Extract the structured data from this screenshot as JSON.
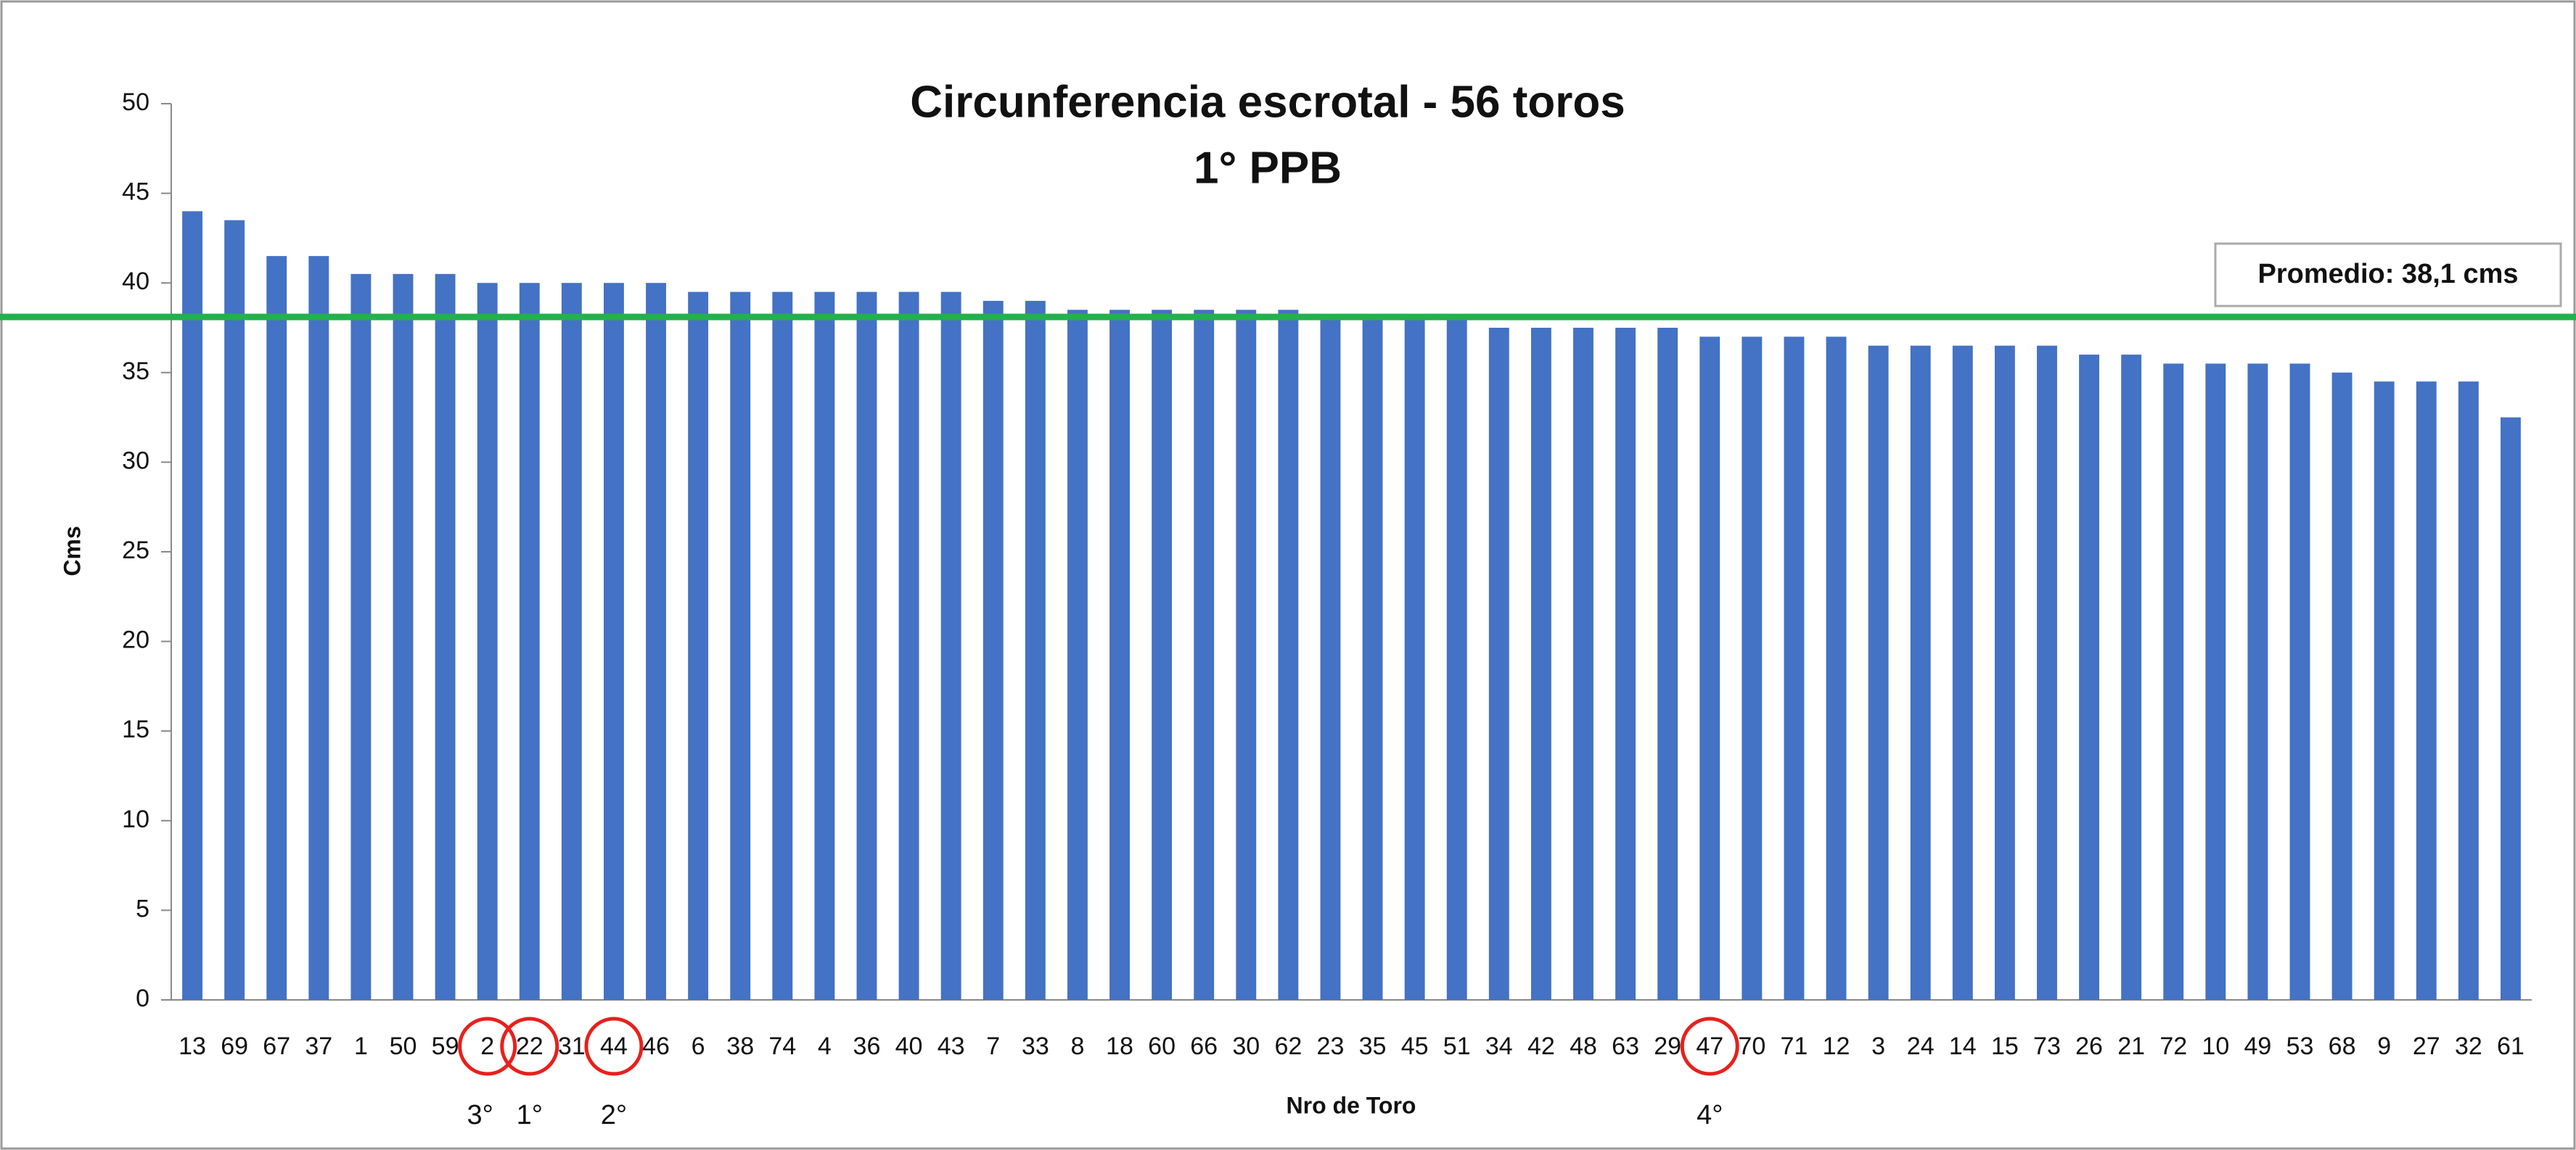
{
  "chart_data": {
    "type": "bar",
    "title": "Circunferencia escrotal - 56 toros",
    "subtitle": "1° PPB",
    "x_label": "Nro de Toro",
    "y_label": "Cms",
    "categories": [
      "13",
      "69",
      "67",
      "37",
      "1",
      "50",
      "59",
      "2",
      "22",
      "31",
      "44",
      "46",
      "6",
      "38",
      "74",
      "4",
      "36",
      "40",
      "43",
      "7",
      "33",
      "8",
      "18",
      "60",
      "66",
      "30",
      "62",
      "23",
      "35",
      "45",
      "51",
      "34",
      "42",
      "48",
      "63",
      "29",
      "47",
      "70",
      "71",
      "12",
      "3",
      "24",
      "14",
      "15",
      "73",
      "26",
      "21",
      "72",
      "10",
      "49",
      "53",
      "68",
      "9",
      "27",
      "32",
      "61"
    ],
    "values": [
      44,
      43.5,
      41.5,
      41.5,
      40.5,
      40.5,
      40.5,
      40,
      40,
      40,
      40,
      40,
      39.5,
      39.5,
      39.5,
      39.5,
      39.5,
      39.5,
      39.5,
      39,
      39,
      38.5,
      38.5,
      38.5,
      38.5,
      38.5,
      38.5,
      38,
      38,
      38,
      38,
      37.5,
      37.5,
      37.5,
      37.5,
      37.5,
      37,
      37,
      37,
      37,
      36.5,
      36.5,
      36.5,
      36.5,
      36.5,
      36,
      36,
      35.5,
      35.5,
      35.5,
      35.5,
      35,
      34.5,
      34.5,
      34.5,
      32.5
    ],
    "color": "#4472c4",
    "ylim": [
      0,
      50
    ],
    "yticks": [
      0,
      5,
      10,
      15,
      20,
      25,
      30,
      35,
      40,
      45,
      50
    ],
    "average": {
      "value": 38.1,
      "label": "Promedio: 38,1 cms",
      "color": "#22b14c"
    },
    "annotations": [
      {
        "category": "2",
        "label": "3°"
      },
      {
        "category": "22",
        "label": "1°"
      },
      {
        "category": "44",
        "label": "2°"
      },
      {
        "category": "47",
        "label": "4°"
      }
    ],
    "annotation_color": "#e8201c"
  }
}
